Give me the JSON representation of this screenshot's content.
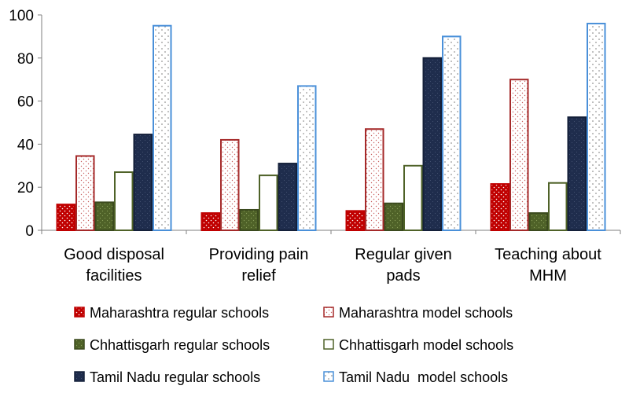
{
  "chart_data": {
    "type": "bar",
    "title": "",
    "xlabel": "",
    "ylabel": "",
    "ylim": [
      0,
      100
    ],
    "yticks": [
      0,
      20,
      40,
      60,
      80,
      100
    ],
    "grid": false,
    "legend_position": "bottom",
    "categories": [
      [
        "Good disposal",
        "facilities"
      ],
      [
        "Providing pain",
        "relief"
      ],
      [
        "Regular given",
        "pads"
      ],
      [
        "Teaching about",
        "MHM"
      ]
    ],
    "series": [
      {
        "name": "Maharashtra regular schools",
        "color": "#c00000",
        "pattern": "dots-dense",
        "border": "#c00000",
        "values": [
          12,
          8,
          9,
          21.5
        ]
      },
      {
        "name": "Maharashtra model schools",
        "color": "#ffffff",
        "pattern": "dots-red",
        "border": "#a52a2a",
        "values": [
          34.5,
          42,
          47,
          70
        ]
      },
      {
        "name": "Chhattisgarh regular schools",
        "color": "#4f6228",
        "pattern": "dots-green",
        "border": "#3b4a1e",
        "values": [
          13,
          9.5,
          12.5,
          8
        ]
      },
      {
        "name": "Chhattisgarh model schools",
        "color": "#ffffff",
        "pattern": "none",
        "border": "#4f6228",
        "values": [
          27,
          25.5,
          30,
          22
        ]
      },
      {
        "name": "Tamil Nadu regular schools",
        "color": "#1f2d4d",
        "pattern": "dots-navy",
        "border": "#14203a",
        "values": [
          44.5,
          31,
          80,
          52.5
        ]
      },
      {
        "name": "Tamil Nadu  model schools",
        "color": "#ffffff",
        "pattern": "dots-blue",
        "border": "#4a90d9",
        "values": [
          95,
          67,
          90,
          96
        ]
      }
    ]
  }
}
